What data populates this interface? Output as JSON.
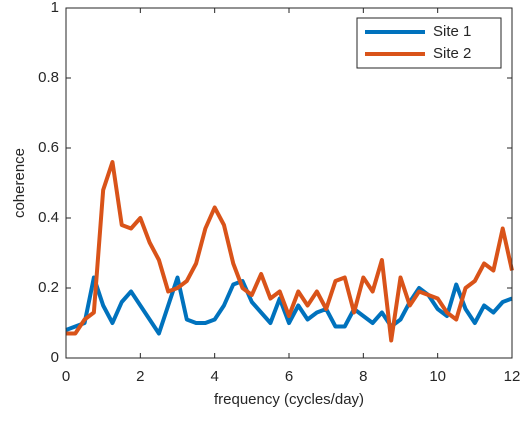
{
  "chart_data": {
    "type": "line",
    "xlabel": "frequency (cycles/day)",
    "ylabel": "coherence",
    "x": [
      0,
      0.25,
      0.5,
      0.75,
      1,
      1.25,
      1.5,
      1.75,
      2,
      2.25,
      2.5,
      2.75,
      3,
      3.25,
      3.5,
      3.75,
      4,
      4.25,
      4.5,
      4.75,
      5,
      5.25,
      5.5,
      5.75,
      6,
      6.25,
      6.5,
      6.75,
      7,
      7.25,
      7.5,
      7.75,
      8,
      8.25,
      8.5,
      8.75,
      9,
      9.25,
      9.5,
      9.75,
      10,
      10.25,
      10.5,
      10.75,
      11,
      11.25,
      11.5,
      11.75,
      12
    ],
    "series": [
      {
        "name": "Site 1",
        "color": "#0072BD",
        "values": [
          0.08,
          0.09,
          0.1,
          0.23,
          0.15,
          0.1,
          0.16,
          0.19,
          0.15,
          0.11,
          0.07,
          0.15,
          0.23,
          0.11,
          0.1,
          0.1,
          0.11,
          0.15,
          0.21,
          0.22,
          0.16,
          0.13,
          0.1,
          0.17,
          0.1,
          0.15,
          0.11,
          0.13,
          0.14,
          0.09,
          0.09,
          0.14,
          0.12,
          0.1,
          0.13,
          0.09,
          0.11,
          0.16,
          0.2,
          0.18,
          0.14,
          0.12,
          0.21,
          0.14,
          0.1,
          0.15,
          0.13,
          0.16,
          0.17
        ]
      },
      {
        "name": "Site 2",
        "color": "#D95319",
        "values": [
          0.07,
          0.07,
          0.11,
          0.13,
          0.48,
          0.56,
          0.38,
          0.37,
          0.4,
          0.33,
          0.28,
          0.19,
          0.2,
          0.22,
          0.27,
          0.37,
          0.43,
          0.38,
          0.27,
          0.2,
          0.18,
          0.24,
          0.17,
          0.19,
          0.12,
          0.19,
          0.15,
          0.19,
          0.14,
          0.22,
          0.23,
          0.13,
          0.23,
          0.19,
          0.28,
          0.05,
          0.23,
          0.15,
          0.19,
          0.18,
          0.17,
          0.13,
          0.11,
          0.2,
          0.22,
          0.27,
          0.25,
          0.37,
          0.25
        ]
      }
    ],
    "xlim": [
      0,
      12
    ],
    "xticks": [
      0,
      2,
      4,
      6,
      8,
      10,
      12
    ],
    "ylim": [
      0,
      1
    ],
    "yticks": [
      0,
      0.2,
      0.4,
      0.6,
      0.8,
      1
    ],
    "legend": "northeast"
  }
}
